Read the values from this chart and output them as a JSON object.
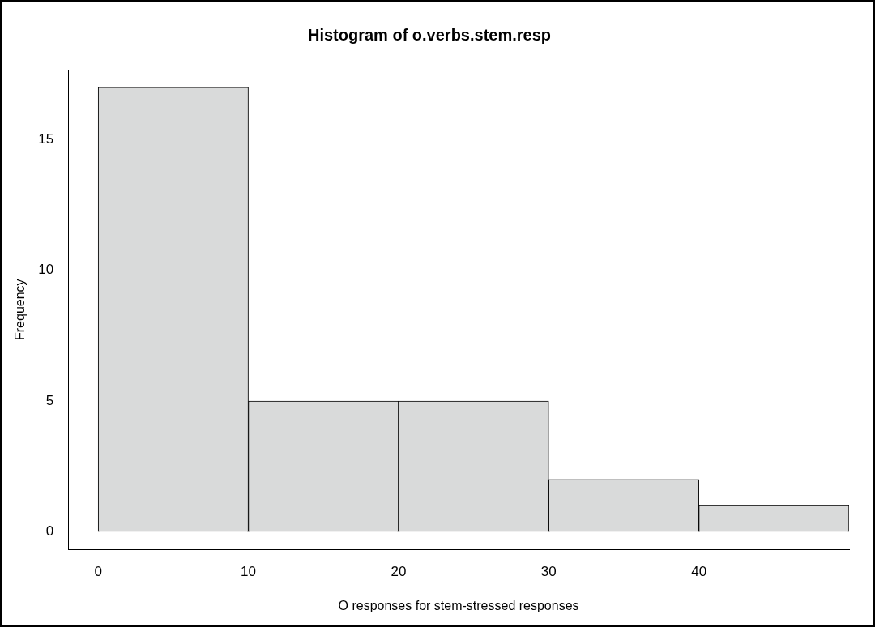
{
  "chart_data": {
    "type": "histogram",
    "title": "Histogram of o.verbs.stem.resp",
    "xlabel": "O responses for stem-stressed responses",
    "ylabel": "Frequency",
    "bins": [
      0,
      10,
      20,
      30,
      40,
      50
    ],
    "values": [
      17,
      5,
      5,
      2,
      1
    ],
    "color": "#d9dada",
    "xlim": [
      -2,
      50
    ],
    "xticks": [
      0,
      10,
      20,
      30,
      40
    ],
    "ylim": [
      -0.68,
      17.68
    ],
    "yticks": [
      0,
      5,
      10,
      15
    ],
    "grid": false,
    "legend": false
  }
}
